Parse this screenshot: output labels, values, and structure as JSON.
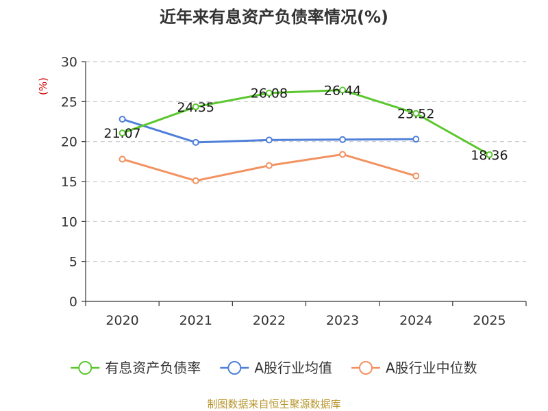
{
  "chart_data": {
    "type": "line",
    "title": "近年来有息资产负债率情况(%)",
    "ylabel": "(%)",
    "xlabel": "",
    "categories": [
      "2020",
      "2021",
      "2022",
      "2023",
      "2024",
      "2025"
    ],
    "ylim": [
      0,
      30
    ],
    "yticks": [
      0,
      5,
      10,
      15,
      20,
      25,
      30
    ],
    "grid": true,
    "legend_position": "bottom",
    "series": [
      {
        "name": "有息资产负债率",
        "color": "#5bc72f",
        "values": [
          21.07,
          24.35,
          26.08,
          26.44,
          23.52,
          18.36
        ],
        "labels": [
          "21.07",
          "24.35",
          "26.08",
          "26.44",
          "23.52",
          "18.36"
        ]
      },
      {
        "name": "A股行业均值",
        "color": "#4f7fd9",
        "values": [
          22.8,
          19.9,
          20.2,
          20.25,
          20.3,
          null
        ]
      },
      {
        "name": "A股行业中位数",
        "color": "#f29261",
        "values": [
          17.8,
          15.1,
          17.0,
          18.4,
          15.7,
          null
        ]
      }
    ],
    "source": "制图数据来自恒生聚源数据库"
  }
}
